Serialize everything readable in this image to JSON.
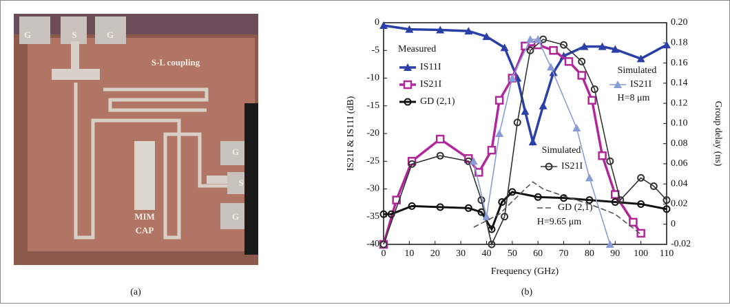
{
  "panels": {
    "a": {
      "caption": "(a)",
      "labels": [
        "G",
        "S",
        "G",
        "S-L coupling",
        "G",
        "S",
        "G",
        "MIM",
        "CAP"
      ]
    }
  },
  "chart_data": {
    "type": "line",
    "caption": "(b)",
    "x_label": "Frequency (GHz)",
    "y_label": "IS21I & IS11I (dB)",
    "y2_label": "Group delay (ns)",
    "xlim": [
      0,
      110
    ],
    "xticks": [
      0,
      10,
      20,
      30,
      40,
      50,
      60,
      70,
      80,
      90,
      100,
      110
    ],
    "ylim": [
      -40,
      0
    ],
    "yticks": [
      0,
      -5,
      -10,
      -15,
      -20,
      -25,
      -30,
      -35,
      -40
    ],
    "y2lim": [
      -0.02,
      0.2
    ],
    "y2ticks": [
      {
        "value": 0.2,
        "label": "0.20"
      },
      0.18,
      0.16,
      0.14,
      0.12,
      {
        "value": 0.1,
        "label": "0.10"
      },
      0.08,
      0.06,
      0.04,
      0.02,
      0,
      -0.02
    ],
    "annotations": [
      "Measured",
      "Simulated",
      "H=8 μm",
      "Simulated",
      "H=9.65 μm"
    ],
    "series": [
      {
        "name": "IS11I",
        "color": "#2b3fa8",
        "marker": "triangle",
        "width": 3.5,
        "x": [
          0,
          10,
          22,
          33,
          40,
          47,
          52,
          55,
          58,
          62,
          66,
          70,
          78,
          85,
          90,
          100,
          110
        ],
        "values": [
          -0.5,
          -1.2,
          -1.3,
          -1.5,
          -2.5,
          -4.5,
          -10,
          -16,
          -21.5,
          -15,
          -9,
          -6,
          -4.3,
          -4.3,
          -4.8,
          -6.5,
          -4
        ]
      },
      {
        "name": "IS21I",
        "color": "#b0279a",
        "marker": "square",
        "width": 3.5,
        "x": [
          0,
          5,
          11,
          22,
          33,
          37,
          42,
          45,
          50,
          55,
          60,
          66,
          72,
          77,
          81,
          85,
          90,
          97,
          100
        ],
        "values": [
          -40,
          -32,
          -25,
          -21,
          -24.5,
          -27,
          -23,
          -14,
          -10,
          -4.2,
          -4,
          -5,
          -7,
          -9.5,
          -14,
          -24,
          -31,
          -36,
          -38
        ]
      },
      {
        "name": "GD (2,1)",
        "color": "#111111",
        "marker": "circle",
        "width": 3,
        "axis": "y2",
        "x": [
          0,
          3,
          11,
          22,
          33,
          38,
          42,
          46,
          50,
          60,
          70,
          80,
          90,
          100,
          110
        ],
        "values": [
          0.01,
          0.01,
          0.018,
          0.017,
          0.016,
          0.012,
          -0.005,
          0.022,
          0.032,
          0.027,
          0.026,
          0.024,
          0.022,
          0.02,
          0.015
        ]
      },
      {
        "name": "IS21I",
        "color": "#333333",
        "marker": "circle",
        "width": 1.6,
        "x": [
          0,
          11,
          22,
          33,
          38,
          42,
          47,
          52,
          57,
          62,
          70,
          77,
          82,
          88,
          92,
          100,
          105,
          110
        ],
        "values": [
          -40,
          -25.5,
          -24,
          -25,
          -32,
          -40,
          -35,
          -18,
          -5,
          -3,
          -4,
          -7,
          -12,
          -25,
          -32,
          -28,
          -29.5,
          -32
        ]
      },
      {
        "name": "IS21I",
        "color": "#8a9cd8",
        "marker": "triangle",
        "width": 1.6,
        "x": [
          35,
          40,
          45,
          50,
          57,
          60,
          65,
          75,
          80,
          88
        ],
        "values": [
          -25,
          -35,
          -20,
          -10,
          -3,
          -3,
          -8,
          -19,
          -28,
          -40
        ]
      },
      {
        "name": "GD (2,1)",
        "color": "#555555",
        "dash": true,
        "width": 1.6,
        "axis": "y2",
        "x": [
          35,
          45,
          55,
          58,
          62,
          70,
          80,
          90,
          100
        ],
        "values": [
          -0.003,
          0.01,
          0.035,
          0.042,
          0.035,
          0.028,
          0.02,
          0.01,
          -0.01
        ]
      }
    ]
  }
}
